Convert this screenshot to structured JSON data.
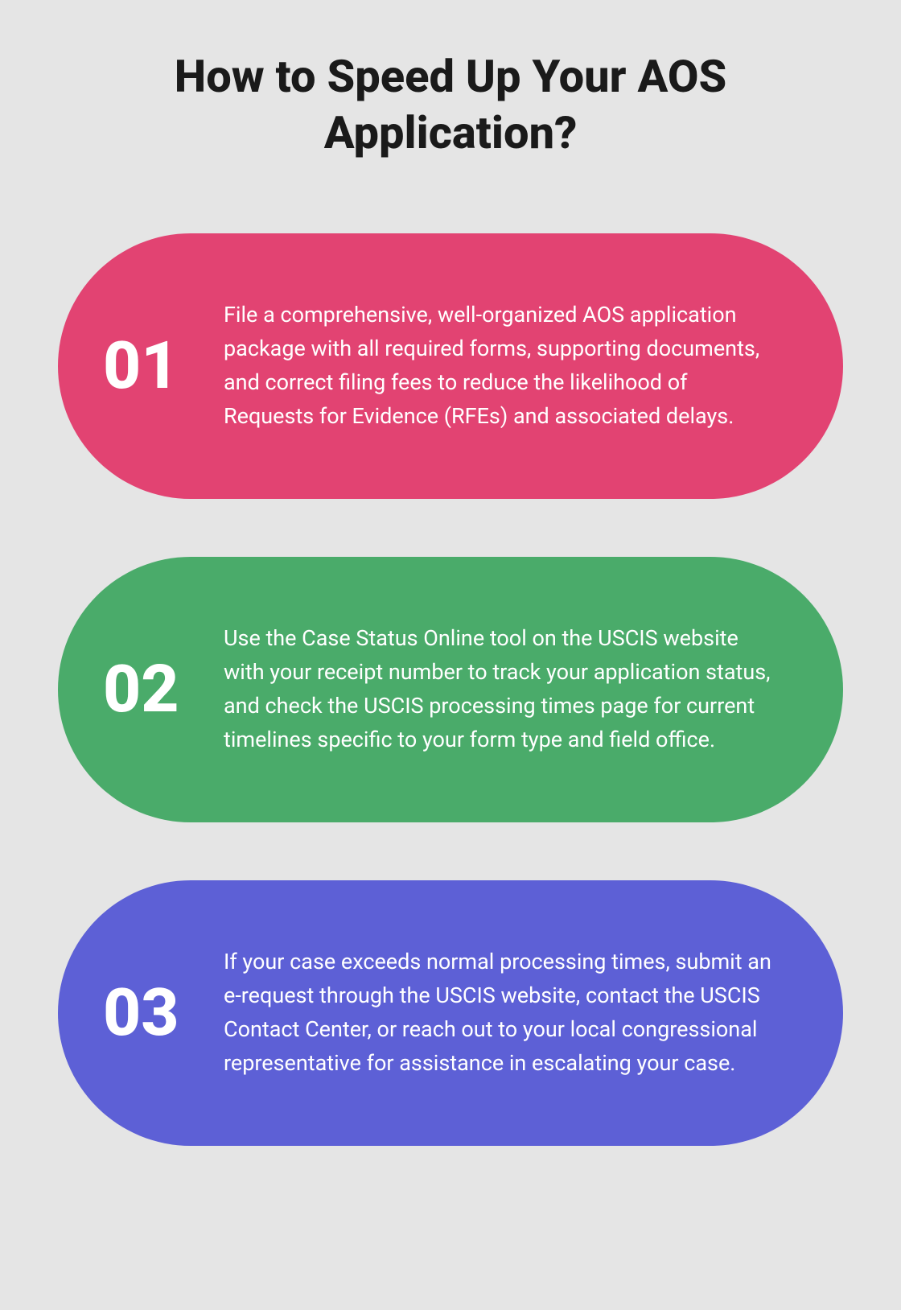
{
  "type": "infographic",
  "background_color": "#e5e5e5",
  "title": {
    "text": "How to Speed Up Your AOS Application?",
    "fontsize": 56,
    "fontweight": 800,
    "color": "#1a1a1a"
  },
  "cards": [
    {
      "number": "01",
      "text": "File a comprehensive, well-organized AOS application package with all required forms, supporting documents, and correct filing fees to reduce the likelihood of Requests for Evidence (RFEs) and associated delays.",
      "background_color": "#e24372",
      "number_color": "#ffffff",
      "text_color": "#ffffff",
      "border_radius": 190
    },
    {
      "number": "02",
      "text": "Use the Case Status Online tool on the USCIS website with your receipt number to track your application status, and check the USCIS processing times page for current timelines specific to your form type and field office.",
      "background_color": "#4aab6a",
      "number_color": "#ffffff",
      "text_color": "#ffffff",
      "border_radius": 190
    },
    {
      "number": "03",
      "text": "If your case exceeds normal processing times, submit an e-request through the USCIS website, contact the USCIS Contact Center, or reach out to your local congressional representative for assistance in escalating your case.",
      "background_color": "#5d60d6",
      "number_color": "#ffffff",
      "text_color": "#ffffff",
      "border_radius": 190
    }
  ],
  "number_fontsize": 82,
  "text_fontsize": 27
}
